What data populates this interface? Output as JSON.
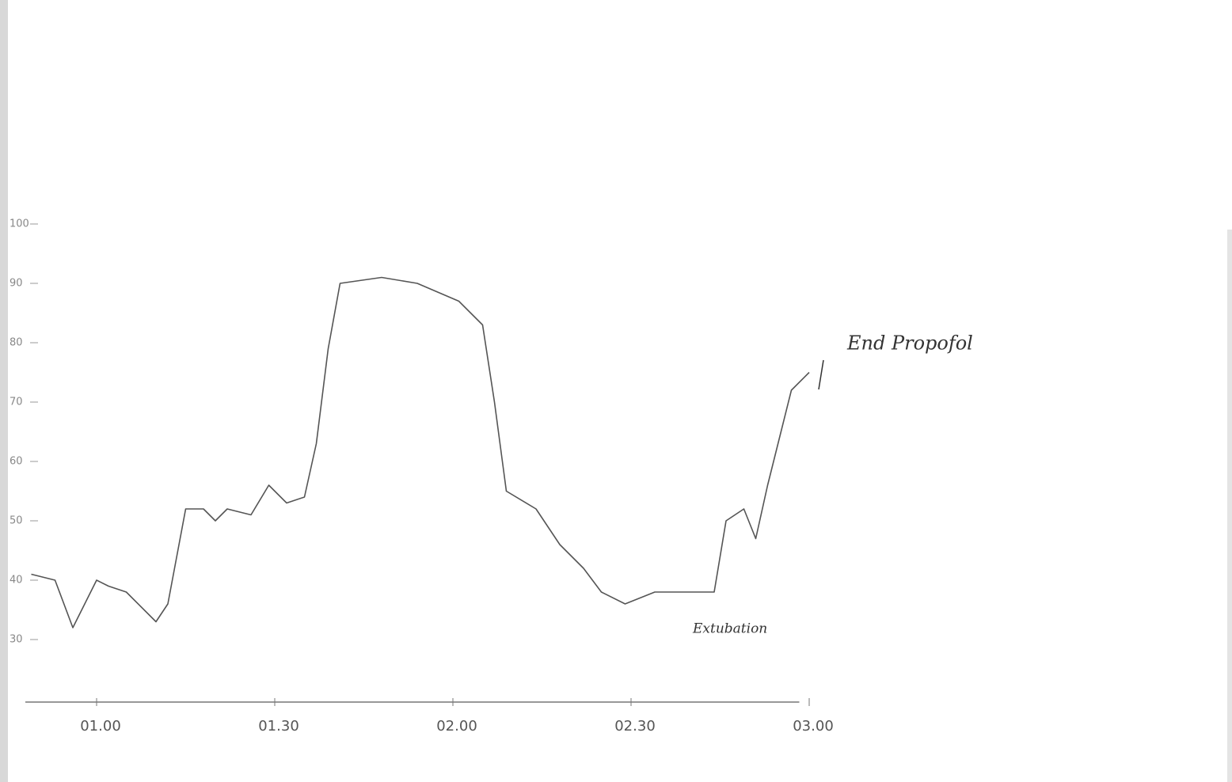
{
  "chart_data": {
    "type": "line",
    "annotations": [
      "End Propofol",
      "Extubation"
    ],
    "xlim": [
      48,
      185
    ],
    "xticks": [
      {
        "value": 60,
        "label": "01.00"
      },
      {
        "value": 90,
        "label": "01.30"
      },
      {
        "value": 120,
        "label": "02.00"
      },
      {
        "value": 150,
        "label": "02.30"
      },
      {
        "value": 180,
        "label": "03.00"
      }
    ],
    "ylim": [
      20,
      100
    ],
    "yticks": [
      30,
      40,
      50,
      60,
      70,
      80,
      90,
      100
    ],
    "x": [
      49,
      53,
      56,
      58,
      60,
      62,
      65,
      70,
      72,
      75,
      78,
      80,
      82,
      86,
      89,
      92,
      95,
      97,
      99,
      101,
      108,
      114,
      121,
      125,
      127,
      129,
      134,
      138,
      142,
      145,
      149,
      154,
      160,
      164,
      166,
      169,
      171,
      173,
      175,
      177,
      180
    ],
    "series": [
      {
        "color": "#555555",
        "values": [
          41,
          40,
          32,
          36,
          40,
          39,
          38,
          33,
          36,
          52,
          52,
          50,
          52,
          51,
          56,
          53,
          54,
          63,
          79,
          90,
          91,
          90,
          87,
          83,
          70,
          55,
          52,
          46,
          42,
          38,
          36,
          38,
          38,
          38,
          50,
          52,
          47,
          56,
          64,
          72,
          75
        ]
      }
    ]
  }
}
